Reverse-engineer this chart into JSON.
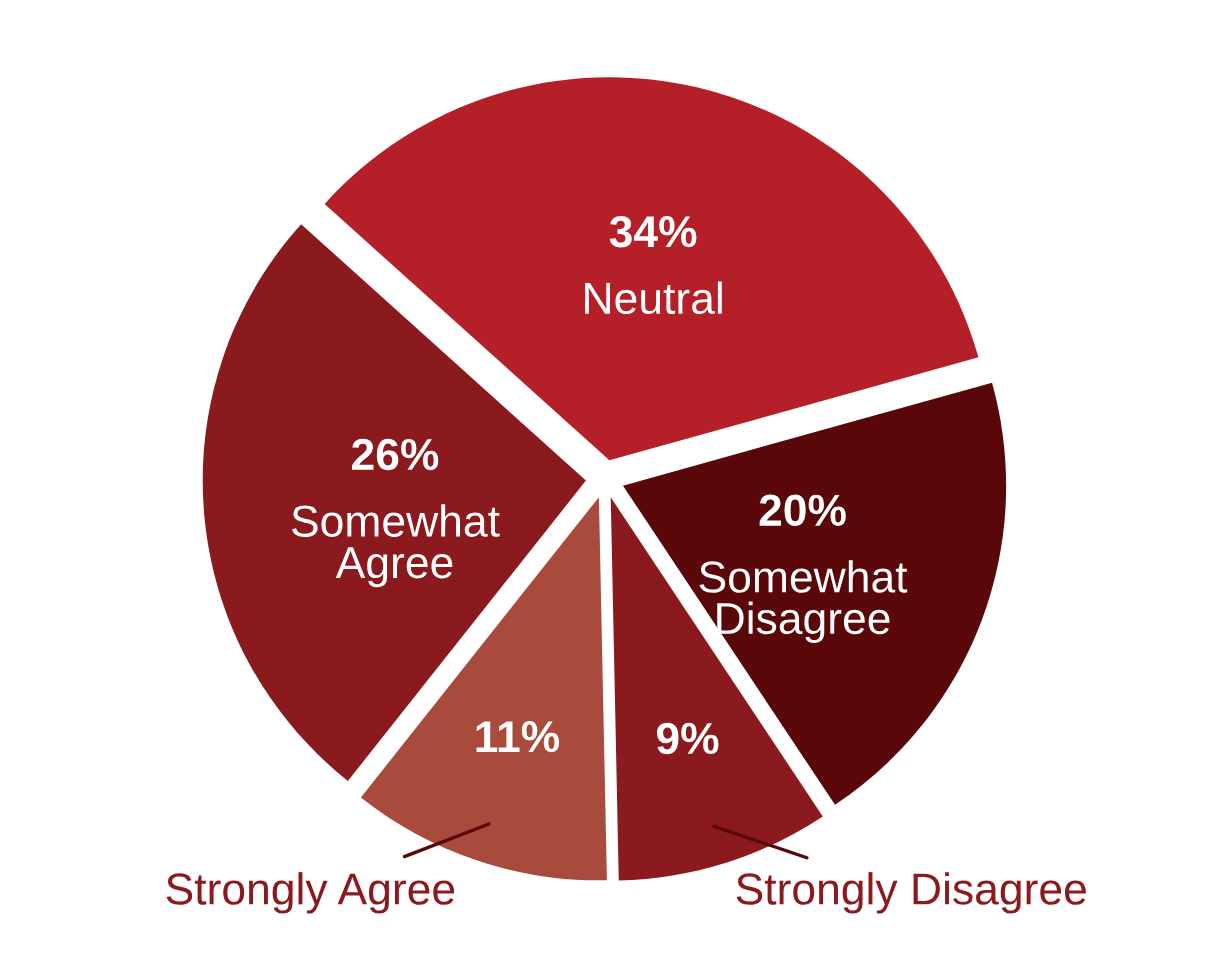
{
  "chart_data": {
    "type": "pie",
    "categories": [
      "Neutral",
      "Somewhat Disagree",
      "Strongly Disagree",
      "Strongly Agree",
      "Somewhat Agree"
    ],
    "values": [
      34,
      20,
      9,
      11,
      26
    ],
    "colors": [
      "#b51f27",
      "#5a070a",
      "#8b1a1e",
      "#a84a3c",
      "#8a1a1e"
    ],
    "value_labels": [
      "34%",
      "20%",
      "9%",
      "11%",
      "26%"
    ],
    "legend": false
  }
}
